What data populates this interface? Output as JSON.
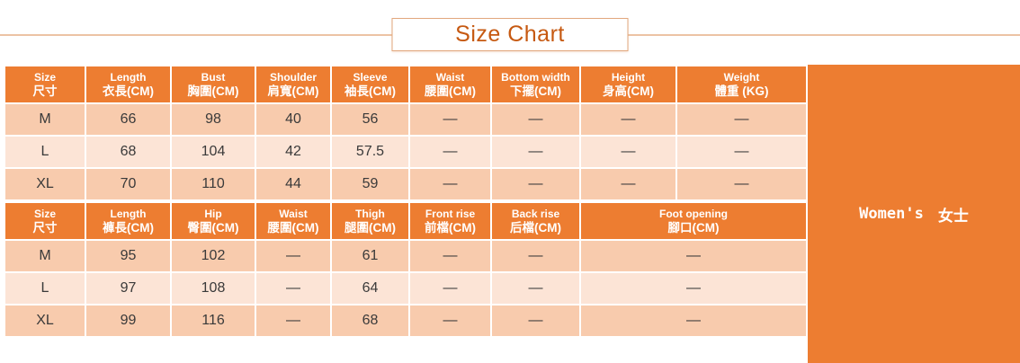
{
  "title": "Size Chart",
  "panel": {
    "label_en": "Women's",
    "label_zh": "女士"
  },
  "colors": {
    "accent": "#ED7D31",
    "row_dark": "#F8CBAD",
    "row_light": "#FCE4D6",
    "title_text": "#C65911",
    "rule": "#ECC3A4",
    "cell_text": "#3A3A3A",
    "header_text": "#FFFFFF"
  },
  "chart_data": [
    {
      "type": "table",
      "title": "Size Chart",
      "section": "tops",
      "headers": [
        {
          "en": "Size",
          "zh": "尺寸",
          "span": 1
        },
        {
          "en": "Length",
          "zh": "衣長(CM)",
          "span": 1
        },
        {
          "en": "Bust",
          "zh": "胸圍(CM)",
          "span": 1
        },
        {
          "en": "Shoulder",
          "zh": "肩寬(CM)",
          "span": 1
        },
        {
          "en": "Sleeve",
          "zh": "袖長(CM)",
          "span": 1
        },
        {
          "en": "Waist",
          "zh": "腰圍(CM)",
          "span": 1
        },
        {
          "en": "Bottom width",
          "zh": "下擺(CM)",
          "span": 1
        },
        {
          "en": "Height",
          "zh": "身高(CM)",
          "span": 1
        },
        {
          "en": "Weight",
          "zh": "體重 (KG)",
          "span": 1
        }
      ],
      "rows": [
        [
          "M",
          "66",
          "98",
          "40",
          "56",
          "—",
          "—",
          "—",
          "—"
        ],
        [
          "L",
          "68",
          "104",
          "42",
          "57.5",
          "—",
          "—",
          "—",
          "—"
        ],
        [
          "XL",
          "70",
          "110",
          "44",
          "59",
          "—",
          "—",
          "—",
          "—"
        ]
      ]
    },
    {
      "type": "table",
      "title": "Size Chart",
      "section": "pants",
      "headers": [
        {
          "en": "Size",
          "zh": "尺寸",
          "span": 1
        },
        {
          "en": "Length",
          "zh": "褲長(CM)",
          "span": 1
        },
        {
          "en": "Hip",
          "zh": "臀圍(CM)",
          "span": 1
        },
        {
          "en": "Waist",
          "zh": "腰圍(CM)",
          "span": 1
        },
        {
          "en": "Thigh",
          "zh": "腿圍(CM)",
          "span": 1
        },
        {
          "en": "Front rise",
          "zh": "前檔(CM)",
          "span": 1
        },
        {
          "en": "Back rise",
          "zh": "后檔(CM)",
          "span": 1
        },
        {
          "en": "Foot opening",
          "zh": "腳口(CM)",
          "span": 2
        }
      ],
      "rows": [
        [
          "M",
          "95",
          "102",
          "—",
          "61",
          "—",
          "—",
          "—"
        ],
        [
          "L",
          "97",
          "108",
          "—",
          "64",
          "—",
          "—",
          "—"
        ],
        [
          "XL",
          "99",
          "116",
          "—",
          "68",
          "—",
          "—",
          "—"
        ]
      ]
    }
  ]
}
